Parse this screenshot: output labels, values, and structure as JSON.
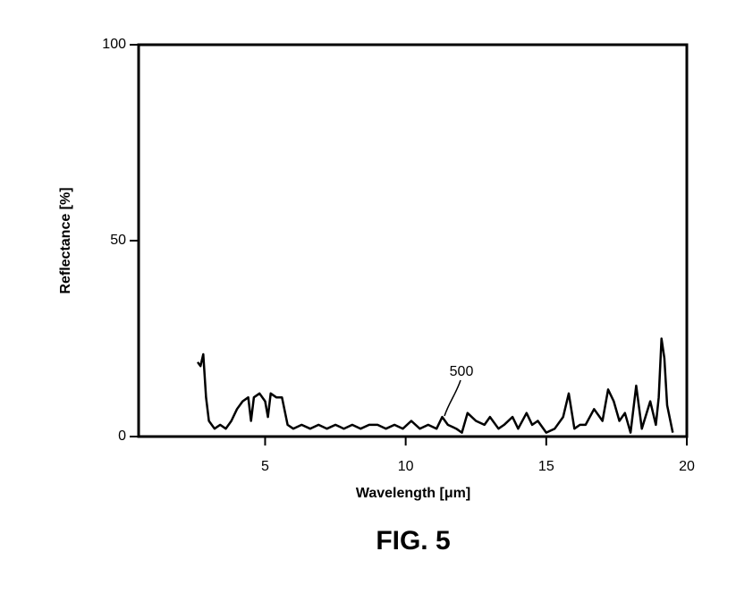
{
  "chart_data": {
    "type": "line",
    "title": "FIG. 5",
    "x_label": "Wavelength [μm]",
    "y_label": "Reflectance [%]",
    "annotation": "500",
    "xlim": [
      0.5,
      20
    ],
    "ylim": [
      0,
      100
    ],
    "xticks": [
      5,
      10,
      15,
      20
    ],
    "yticks": [
      0,
      50,
      100
    ],
    "grid": false,
    "series": [
      {
        "name": "500",
        "color": "#000000",
        "x": [
          2.6,
          2.7,
          2.8,
          2.9,
          3.0,
          3.2,
          3.4,
          3.6,
          3.8,
          4.0,
          4.2,
          4.4,
          4.5,
          4.6,
          4.8,
          5.0,
          5.1,
          5.2,
          5.4,
          5.6,
          5.8,
          6.0,
          6.3,
          6.6,
          6.9,
          7.2,
          7.5,
          7.8,
          8.1,
          8.4,
          8.7,
          9.0,
          9.3,
          9.6,
          9.9,
          10.2,
          10.5,
          10.8,
          11.1,
          11.3,
          11.5,
          11.8,
          12.0,
          12.2,
          12.5,
          12.8,
          13.0,
          13.3,
          13.5,
          13.8,
          14.0,
          14.3,
          14.5,
          14.7,
          15.0,
          15.3,
          15.6,
          15.8,
          16.0,
          16.2,
          16.4,
          16.7,
          17.0,
          17.2,
          17.4,
          17.6,
          17.8,
          18.0,
          18.2,
          18.4,
          18.7,
          18.9,
          19.0,
          19.1,
          19.2,
          19.3,
          19.5
        ],
        "values": [
          19,
          18,
          21,
          10,
          4,
          2,
          3,
          2,
          4,
          7,
          9,
          10,
          4,
          10,
          11,
          9,
          5,
          11,
          10,
          10,
          3,
          2,
          3,
          2,
          3,
          2,
          3,
          2,
          3,
          2,
          3,
          3,
          2,
          3,
          2,
          4,
          2,
          3,
          2,
          5,
          3,
          2,
          1,
          6,
          4,
          3,
          5,
          2,
          3,
          5,
          2,
          6,
          3,
          4,
          1,
          2,
          5,
          11,
          2,
          3,
          3,
          7,
          4,
          12,
          9,
          4,
          6,
          1,
          13,
          2,
          9,
          3,
          10,
          25,
          20,
          8,
          1
        ]
      }
    ]
  }
}
